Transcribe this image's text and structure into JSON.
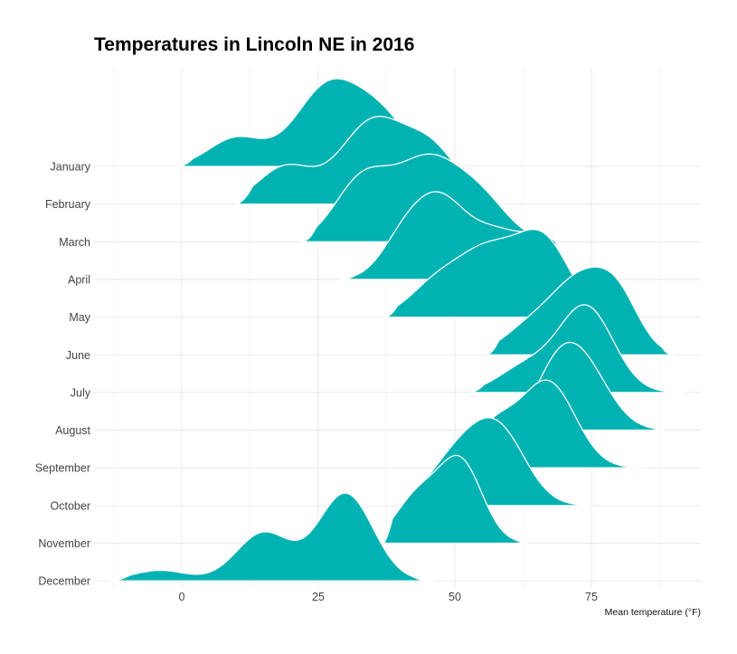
{
  "chart_data": {
    "type": "ridgeline",
    "title": "Temperatures in Lincoln NE in 2016",
    "xlabel": "Mean temperature (°F)",
    "ylabel": "",
    "x_ticks": [
      0,
      25,
      50,
      75
    ],
    "xlim": [
      -14,
      94
    ],
    "fill_color": "#00B2B2",
    "outline_color": "#FFFFFF",
    "grid": true,
    "series": [
      {
        "name": "January",
        "min": -1,
        "max": 49,
        "modes": [
          [
            10,
            0.35,
            5
          ],
          [
            27,
            1.0,
            6
          ],
          [
            37,
            0.5,
            5
          ]
        ]
      },
      {
        "name": "February",
        "min": 10,
        "max": 59,
        "modes": [
          [
            19,
            0.45,
            5
          ],
          [
            35,
            1.0,
            6
          ],
          [
            46,
            0.6,
            5
          ]
        ]
      },
      {
        "name": "March",
        "min": 22,
        "max": 66,
        "modes": [
          [
            33,
            0.75,
            5
          ],
          [
            45,
            1.0,
            6
          ],
          [
            55,
            0.45,
            5
          ]
        ]
      },
      {
        "name": "April",
        "min": 29,
        "max": 71,
        "modes": [
          [
            40,
            0.35,
            4
          ],
          [
            47,
            1.0,
            5
          ],
          [
            58,
            0.55,
            5
          ],
          [
            67,
            0.45,
            4
          ]
        ]
      },
      {
        "name": "May",
        "min": 37,
        "max": 78,
        "modes": [
          [
            47,
            0.45,
            5
          ],
          [
            56,
            0.75,
            5
          ],
          [
            66,
            1.0,
            5
          ]
        ]
      },
      {
        "name": "June",
        "min": 56,
        "max": 90,
        "modes": [
          [
            64,
            0.4,
            5
          ],
          [
            73,
            1.0,
            5
          ],
          [
            80,
            0.7,
            4
          ]
        ]
      },
      {
        "name": "July",
        "min": 53,
        "max": 92,
        "modes": [
          [
            63,
            0.3,
            5
          ],
          [
            74,
            1.0,
            5
          ]
        ]
      },
      {
        "name": "August",
        "min": 62,
        "max": 88,
        "modes": [
          [
            68,
            0.5,
            4
          ],
          [
            73,
            1.0,
            5
          ]
        ]
      },
      {
        "name": "September",
        "min": 51,
        "max": 84,
        "modes": [
          [
            57,
            0.45,
            4
          ],
          [
            67,
            1.0,
            5
          ]
        ]
      },
      {
        "name": "October",
        "min": 42,
        "max": 75,
        "modes": [
          [
            50,
            0.6,
            5
          ],
          [
            58,
            1.0,
            5
          ]
        ]
      },
      {
        "name": "November",
        "min": 37,
        "max": 63,
        "modes": [
          [
            43,
            0.55,
            4
          ],
          [
            51,
            1.0,
            4
          ]
        ]
      },
      {
        "name": "December",
        "min": -13,
        "max": 46,
        "modes": [
          [
            -4,
            0.12,
            5
          ],
          [
            15,
            0.55,
            5
          ],
          [
            30,
            1.0,
            5
          ]
        ]
      }
    ]
  }
}
